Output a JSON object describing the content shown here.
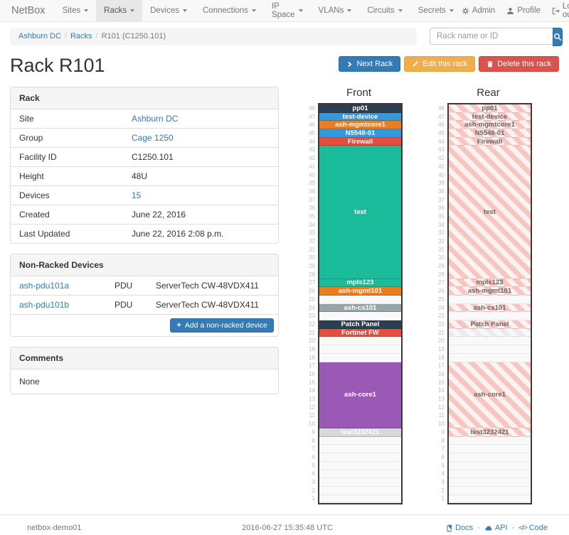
{
  "navbar": {
    "brand": "NetBox",
    "items": [
      {
        "label": "Sites"
      },
      {
        "label": "Racks"
      },
      {
        "label": "Devices"
      },
      {
        "label": "Connections"
      },
      {
        "label": "IP Space"
      },
      {
        "label": "VLANs"
      },
      {
        "label": "Circuits"
      },
      {
        "label": "Secrets"
      }
    ],
    "active_item": "Racks",
    "right": [
      {
        "icon": "gear-icon",
        "label": "Admin"
      },
      {
        "icon": "user-icon",
        "label": "Profile"
      },
      {
        "icon": "logout-icon",
        "label": "Log out"
      }
    ]
  },
  "breadcrumb": [
    {
      "label": "Ashburn DC",
      "link": true
    },
    {
      "label": "Racks",
      "link": true
    },
    {
      "label": "R101 (C1250.101)",
      "link": false
    }
  ],
  "search": {
    "placeholder": "Rack name or ID",
    "icon": "search-icon"
  },
  "actions": {
    "next": {
      "label": "Next Rack",
      "icon": "chevron-right-icon",
      "color": "#337ab7"
    },
    "edit": {
      "label": "Edit this rack",
      "icon": "pencil-icon",
      "color": "#f0ad4e"
    },
    "delete": {
      "label": "Delete this rack",
      "icon": "trash-icon",
      "color": "#d9534f"
    }
  },
  "page_title": "Rack R101",
  "rack_panel": {
    "title": "Rack",
    "rows": [
      {
        "label": "Site",
        "value": "Ashburn DC",
        "link": true
      },
      {
        "label": "Group",
        "value": "Cage 1250",
        "link": true
      },
      {
        "label": "Facility ID",
        "value": "C1250.101",
        "link": false
      },
      {
        "label": "Height",
        "value": "48U",
        "link": false
      },
      {
        "label": "Devices",
        "value": "15",
        "link": true
      },
      {
        "label": "Created",
        "value": "June 22, 2016",
        "link": false
      },
      {
        "label": "Last Updated",
        "value": "June 22, 2016 2:08 p.m.",
        "link": false
      }
    ]
  },
  "nonracked_panel": {
    "title": "Non-Racked Devices",
    "rows": [
      {
        "name": "ash-pdu101a",
        "type": "PDU",
        "model": "ServerTech CW-48VDX411"
      },
      {
        "name": "ash-pdu101b",
        "type": "PDU",
        "model": "ServerTech CW-48VDX411"
      }
    ],
    "add_button": "Add a non-racked device",
    "add_icon": "plus-icon"
  },
  "comments_panel": {
    "title": "Comments",
    "body": "None"
  },
  "elevation": {
    "front_title": "Front",
    "rear_title": "Rear",
    "total_units": 48,
    "segments": [
      {
        "u": 48,
        "span": 1,
        "label": "pp01",
        "color": "#2c3e50"
      },
      {
        "u": 47,
        "span": 1,
        "label": "test-device",
        "color": "#3498db"
      },
      {
        "u": 46,
        "span": 1,
        "label": "ash-mgmtcore1",
        "color": "#e67e22"
      },
      {
        "u": 45,
        "span": 1,
        "label": "N5548-01",
        "color": "#3498db"
      },
      {
        "u": 44,
        "span": 1,
        "label": "Firewall",
        "color": "#e74c3c"
      },
      {
        "u": 43,
        "span": 16,
        "label": "test",
        "color": "#1abc9c"
      },
      {
        "u": 27,
        "span": 1,
        "label": "mpls123",
        "color": "#1abc9c"
      },
      {
        "u": 26,
        "span": 1,
        "label": "ash-mgmt101",
        "color": "#e67e22"
      },
      {
        "u": 25,
        "span": 1,
        "empty": true
      },
      {
        "u": 24,
        "span": 1,
        "label": "ash-cs101",
        "color": "#95a5a6"
      },
      {
        "u": 23,
        "span": 1,
        "empty": true
      },
      {
        "u": 22,
        "span": 1,
        "label": "Patch Panel",
        "color": "#2c3e50"
      },
      {
        "u": 21,
        "span": 1,
        "label": "Fortinet FW",
        "color": "#e74c3c",
        "front_only": true
      },
      {
        "u": 20,
        "span": 3,
        "empty": true
      },
      {
        "u": 17,
        "span": 8,
        "label": "ash-core1",
        "color": "#9b59b6"
      },
      {
        "u": 9,
        "span": 1,
        "label": "test3232421",
        "color": "#d6d9db"
      },
      {
        "u": 8,
        "span": 8,
        "empty": true
      }
    ]
  },
  "footer": {
    "hostname": "netbox-demo01",
    "timestamp": "2016-06-27 15:35:48 UTC",
    "links": [
      {
        "icon": "book-icon",
        "label": "Docs"
      },
      {
        "icon": "cloud-icon",
        "label": "API"
      },
      {
        "icon": "code-icon",
        "label": "Code"
      }
    ]
  },
  "theme": {
    "link": "#337ab7",
    "btn_primary": "#337ab7",
    "btn_warning": "#f0ad4e",
    "btn_danger": "#d9534f",
    "rear_hatch_pink": "#f8c5c0",
    "rear_hatch_gray": "#ebebeb",
    "empty_unit": "#f9f9f9"
  }
}
